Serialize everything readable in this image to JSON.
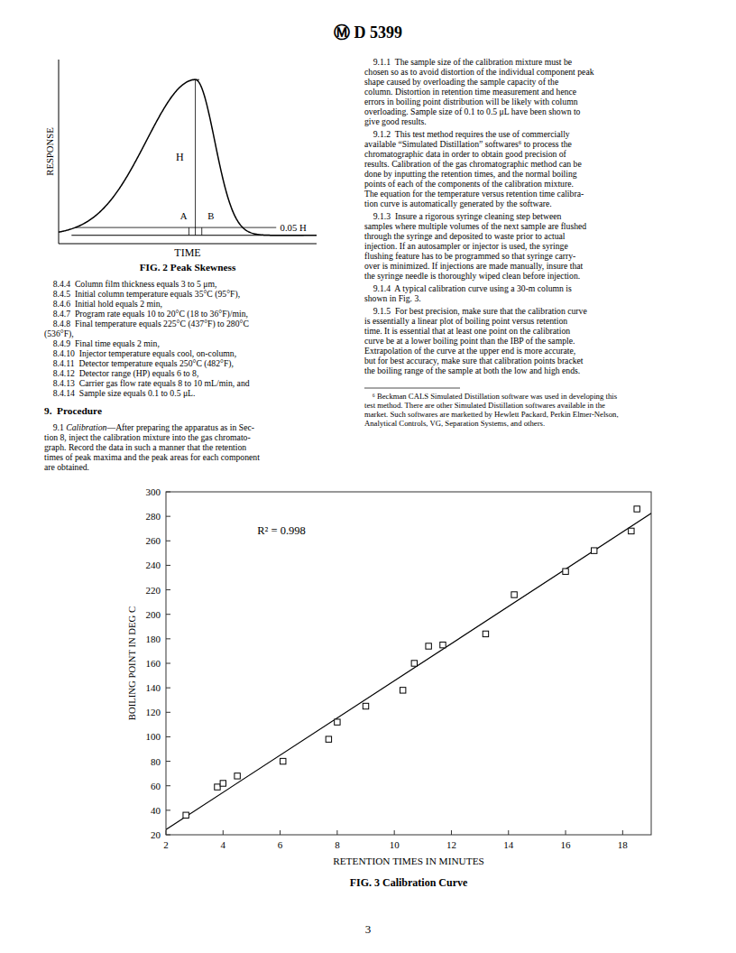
{
  "page": {
    "header": "Ⓜ D 5399",
    "page_number": "3",
    "background": "#ffffff",
    "text_color": "#000000",
    "left_column": [
      {
        "lines": [
          "    8.4.4  Column film thickness equals 3 to 5 μm,",
          "    8.4.5  Initial column temperature equals 35°C (95°F),",
          "    8.4.6  Initial hold equals 2 min,",
          "    8.4.7  Program rate equals 10 to 20°C (18 to 36°F)/min,",
          "    8.4.8  Final temperature equals 225°C (437°F) to 280°C",
          "(536°F),",
          "    8.4.9  Final time equals 2 min,",
          "    8.4.10  Injector temperature equals cool, on-column,",
          "    8.4.11  Detector temperature equals 250°C (482°F),",
          "    8.4.12  Detector range (HP) equals 6 to 8,",
          "    8.4.13  Carrier gas flow rate equals 8 to 10 mL/min, and",
          "    8.4.14  Sample size equals 0.1 to 0.5 μL."
        ]
      },
      {
        "heading": "9.  Procedure"
      },
      {
        "lines": [
          {
            "parts": [
              {
                "text": "    9.1 "
              },
              {
                "text": "Calibration",
                "style": "italic"
              },
              {
                "text": "—After preparing the apparatus as in Sec-"
              }
            ]
          },
          "tion 8, inject the calibration mixture into the gas chromato-",
          "graph. Record the data in such a manner that the retention",
          "times of peak maxima and the peak areas for each component",
          "are obtained."
        ]
      }
    ],
    "right_column": [
      {
        "lines": [
          "    9.1.1  The sample size of the calibration mixture must be",
          "chosen so as to avoid distortion of the individual component peak",
          "shape caused by overloading the sample capacity of the",
          "column. Distortion in retention time measurement and hence",
          "errors in boiling point distribution will be likely with column",
          "overloading. Sample size of 0.1 to 0.5 μL have been shown to",
          "give good results."
        ]
      },
      {
        "lines": [
          "    9.1.2  This test method requires the use of commercially",
          "available “Simulated Distillation” softwares⁶ to process the",
          "chromatographic data in order to obtain good precision of",
          "results. Calibration of the gas chromatographic method can be",
          "done by inputting the retention times, and the normal boiling",
          "points of each of the components of the calibration mixture.",
          "The equation for the temperature versus retention time calibra-",
          "tion curve is automatically generated by the software."
        ]
      },
      {
        "lines": [
          "    9.1.3  Insure a rigorous syringe cleaning step between",
          "samples where multiple volumes of the next sample are flushed",
          "through the syringe and deposited to waste prior to actual",
          "injection. If an autosampler or injector is used, the syringe",
          "flushing feature has to be programmed so that syringe carry-",
          "over is minimized. If injections are made manually, insure that",
          "the syringe needle is thoroughly wiped clean before injection."
        ]
      },
      {
        "lines": [
          "    9.1.4  A typical calibration curve using a 30-m column is",
          "shown in Fig. 3."
        ]
      },
      {
        "lines": [
          "    9.1.5  For best precision, make sure that the calibration curve",
          "is essentially a linear plot of boiling point versus retention",
          "time. It is essential that at least one point on the calibration",
          "curve be at a lower boiling point than the IBP of the sample.",
          "Extrapolation of the curve at the upper end is more accurate,",
          "but for best accuracy, make sure that calibration points bracket",
          "the boiling range of the sample at both the low and high ends."
        ]
      }
    ],
    "footnote": {
      "lines": [
        "    ⁶ Beckman CALS Simulated Distillation software was used in developing this",
        "test method. There are other Simulated Distillation softwares available in the",
        "market. Such softwares are marketted by Hewlett Packard, Perkin Elmer-Nelson,",
        "Analytical Controls, VG, Separation Systems, and others."
      ]
    }
  },
  "chart_data": [
    {
      "type": "scatter",
      "title": "FIG. 3 Calibration Curve",
      "x_label": "RETENTION TIMES IN MINUTES",
      "y_label": "BOILING POINT IN DEG C",
      "xlim": [
        2,
        19
      ],
      "ylim": [
        20,
        300
      ],
      "xticks": [
        2,
        4,
        6,
        8,
        10,
        12,
        14,
        16,
        18
      ],
      "yticks": [
        20,
        40,
        60,
        80,
        100,
        120,
        140,
        160,
        180,
        200,
        220,
        240,
        260,
        280,
        300
      ],
      "grid": false,
      "series": [
        {
          "type": "line",
          "color": "#000000",
          "line_style": "solid",
          "x": [
            2,
            19
          ],
          "values": [
            24.24,
            282.41
          ]
        },
        {
          "type": "scatter",
          "marker": "square",
          "color": "#000000",
          "x": [
            2.7,
            3.8,
            4.0,
            4.5,
            6.1,
            7.7,
            8.0,
            9.0,
            10.3,
            10.7,
            11.2,
            11.7,
            13.2,
            14.2,
            16.0,
            17.0,
            18.3,
            18.5
          ],
          "values": [
            36,
            59,
            62,
            68,
            80,
            98,
            112,
            125,
            138,
            160,
            174,
            175,
            184,
            216,
            235,
            252,
            268,
            286
          ]
        }
      ],
      "annotations": [
        {
          "text": "R² = 0.998",
          "x": 5.2,
          "y": 268
        }
      ]
    },
    {
      "type": "diagram",
      "title": "FIG. 2 Peak Skewness",
      "x_label": "TIME",
      "y_label": "RESPONSE",
      "tick_labels": false,
      "annotations": [
        {
          "text": "H"
        },
        {
          "text": "A"
        },
        {
          "text": "B"
        },
        {
          "text": "0.05 H"
        }
      ]
    }
  ]
}
